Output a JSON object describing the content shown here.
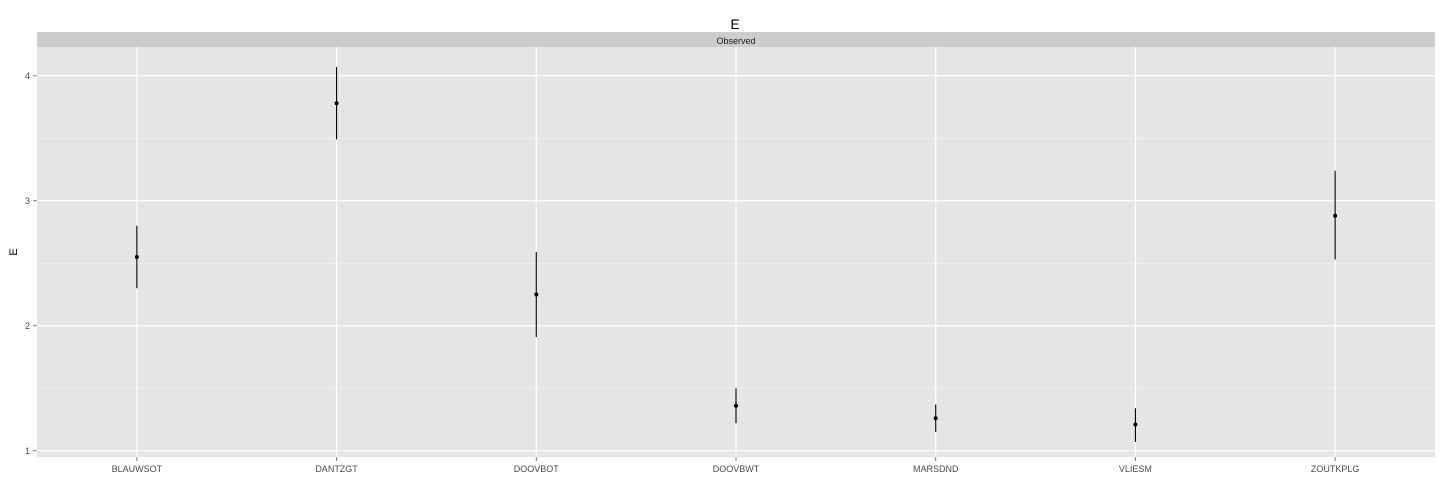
{
  "chart_data": {
    "type": "pointrange",
    "title": "E",
    "facet_label": "Observed",
    "xlabel": "",
    "ylabel": "E",
    "categories": [
      "BLAUWSOT",
      "DANTZGT",
      "DOOVBOT",
      "DOOVBWT",
      "MARSDND",
      "VLIESM",
      "ZOUTKPLG"
    ],
    "values": [
      2.55,
      3.78,
      2.25,
      1.36,
      1.26,
      1.21,
      2.88
    ],
    "lower": [
      2.3,
      3.49,
      1.91,
      1.22,
      1.15,
      1.07,
      2.53
    ],
    "upper": [
      2.8,
      4.07,
      2.59,
      1.5,
      1.37,
      1.34,
      3.24
    ],
    "ylim": [
      0.95,
      4.23
    ],
    "yticks": [
      1,
      2,
      3,
      4
    ],
    "grid": true,
    "colors": {
      "panel": "#e5e5e5",
      "grid_major": "#ffffff",
      "grid_minor": "#f2f2f2",
      "strip": "#cccccc",
      "mark": "#000000"
    }
  }
}
